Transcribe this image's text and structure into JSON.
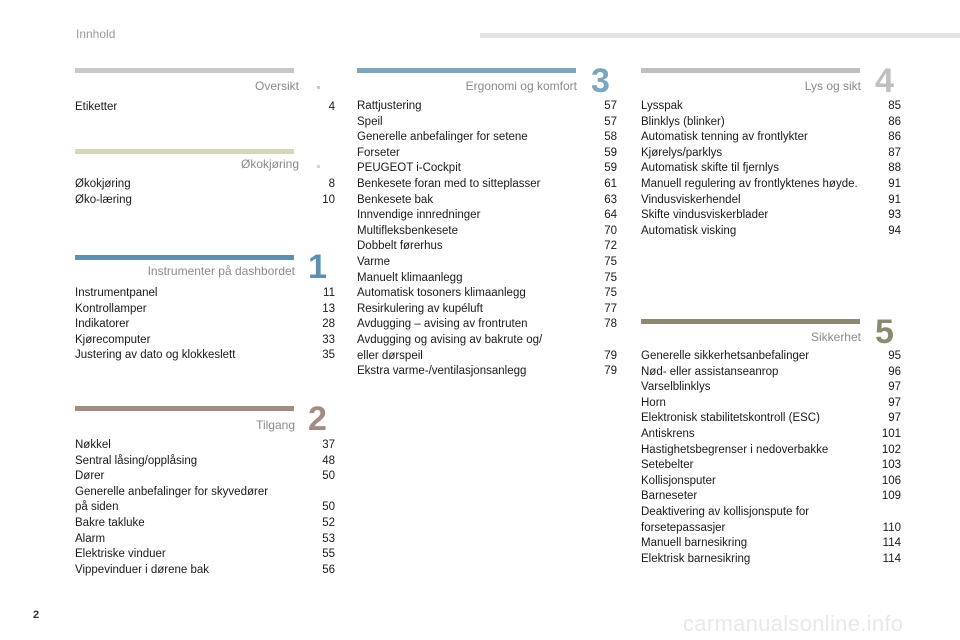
{
  "header": {
    "title": "Innhold"
  },
  "footer": {
    "page_number": "2",
    "watermark": "carmanualsonline.info"
  },
  "colors": {
    "oversikt": "#c8c8c8",
    "okokjoring": "#d6d6b8",
    "instrumenter": "#5d8fb3",
    "tilgang": "#a18c86",
    "ergonomi": "#7aa7bf",
    "lys": "#bfbfbf",
    "sikkerhet": "#8a8a70"
  },
  "sections": {
    "oversikt": {
      "title": "Oversikt",
      "entries": [
        {
          "text": "Etiketter",
          "page": "4"
        }
      ]
    },
    "okokjoring": {
      "title": "Økokjøring",
      "entries": [
        {
          "text": "Økokjøring",
          "page": "8"
        },
        {
          "text": "Øko-læring",
          "page": "10"
        }
      ]
    },
    "instrumenter": {
      "title": "Instrumenter på dashbordet",
      "number": "1",
      "entries": [
        {
          "text": "Instrumentpanel",
          "page": "11"
        },
        {
          "text": "Kontrollamper",
          "page": "13"
        },
        {
          "text": "Indikatorer",
          "page": "28"
        },
        {
          "text": "Kjørecomputer",
          "page": "33"
        },
        {
          "text": "Justering av dato og klokkeslett",
          "page": "35"
        }
      ]
    },
    "tilgang": {
      "title": "Tilgang",
      "number": "2",
      "entries": [
        {
          "text": "Nøkkel",
          "page": "37"
        },
        {
          "text": "Sentral låsing/opplåsing",
          "page": "48"
        },
        {
          "text": "Dører",
          "page": "50"
        },
        {
          "text": "Generelle anbefalinger for skyvedører\npå siden",
          "page": "50"
        },
        {
          "text": "Bakre takluke",
          "page": "52"
        },
        {
          "text": "Alarm",
          "page": "53"
        },
        {
          "text": "Elektriske vinduer",
          "page": "55"
        },
        {
          "text": "Vippevinduer i dørene bak",
          "page": "56"
        }
      ]
    },
    "ergonomi": {
      "title": "Ergonomi og komfort",
      "number": "3",
      "entries": [
        {
          "text": "Rattjustering",
          "page": "57"
        },
        {
          "text": "Speil",
          "page": "57"
        },
        {
          "text": "Generelle anbefalinger for setene",
          "page": "58"
        },
        {
          "text": "Forseter",
          "page": "59"
        },
        {
          "text": "PEUGEOT i-Cockpit",
          "page": "59"
        },
        {
          "text": "Benkesete foran med to sitteplasser",
          "page": "61"
        },
        {
          "text": "Benkesete bak",
          "page": "63"
        },
        {
          "text": "Innvendige innredninger",
          "page": "64"
        },
        {
          "text": "Multifleksbenkesete",
          "page": "70"
        },
        {
          "text": "Dobbelt førerhus",
          "page": "72"
        },
        {
          "text": "Varme",
          "page": "75"
        },
        {
          "text": "Manuelt klimaanlegg",
          "page": "75"
        },
        {
          "text": "Automatisk tosoners klimaanlegg",
          "page": "75"
        },
        {
          "text": "Resirkulering av kupéluft",
          "page": "77"
        },
        {
          "text": "Avdugging – avising av frontruten",
          "page": "78"
        },
        {
          "text": "Avdugging og avising av bakrute og/\neller dørspeil",
          "page": "79"
        },
        {
          "text": "Ekstra varme-/ventilasjonsanlegg",
          "page": "79"
        }
      ]
    },
    "lys": {
      "title": "Lys og sikt",
      "number": "4",
      "entries": [
        {
          "text": "Lysspak",
          "page": "85"
        },
        {
          "text": "Blinklys (blinker)",
          "page": "86"
        },
        {
          "text": "Automatisk tenning av frontlykter",
          "page": "86"
        },
        {
          "text": "Kjørelys/parklys",
          "page": "87"
        },
        {
          "text": "Automatisk skifte til fjernlys",
          "page": "88"
        },
        {
          "text": "Manuell regulering av frontlyktenes høyde.",
          "page": "91"
        },
        {
          "text": "Vindusviskerhendel",
          "page": "91"
        },
        {
          "text": "Skifte vindusviskerblader",
          "page": "93"
        },
        {
          "text": "Automatisk visking",
          "page": "94"
        }
      ]
    },
    "sikkerhet": {
      "title": "Sikkerhet",
      "number": "5",
      "entries": [
        {
          "text": "Generelle sikkerhetsanbefalinger",
          "page": "95"
        },
        {
          "text": "Nød- eller assistanseanrop",
          "page": "96"
        },
        {
          "text": "Varselblinklys",
          "page": "97"
        },
        {
          "text": "Horn",
          "page": "97"
        },
        {
          "text": "Elektronisk stabilitetskontroll (ESC)",
          "page": "97"
        },
        {
          "text": "Antiskrens",
          "page": "101"
        },
        {
          "text": "Hastighetsbegrenser i nedoverbakke",
          "page": "102"
        },
        {
          "text": "Setebelter",
          "page": "103"
        },
        {
          "text": "Kollisjonsputer",
          "page": "106"
        },
        {
          "text": "Barneseter",
          "page": "109"
        },
        {
          "text": "Deaktivering av kollisjonspute for\nforsetepassasjer",
          "page": "110"
        },
        {
          "text": "Manuell barnesikring",
          "page": "114"
        },
        {
          "text": "Elektrisk barnesikring",
          "page": "114"
        }
      ]
    }
  }
}
